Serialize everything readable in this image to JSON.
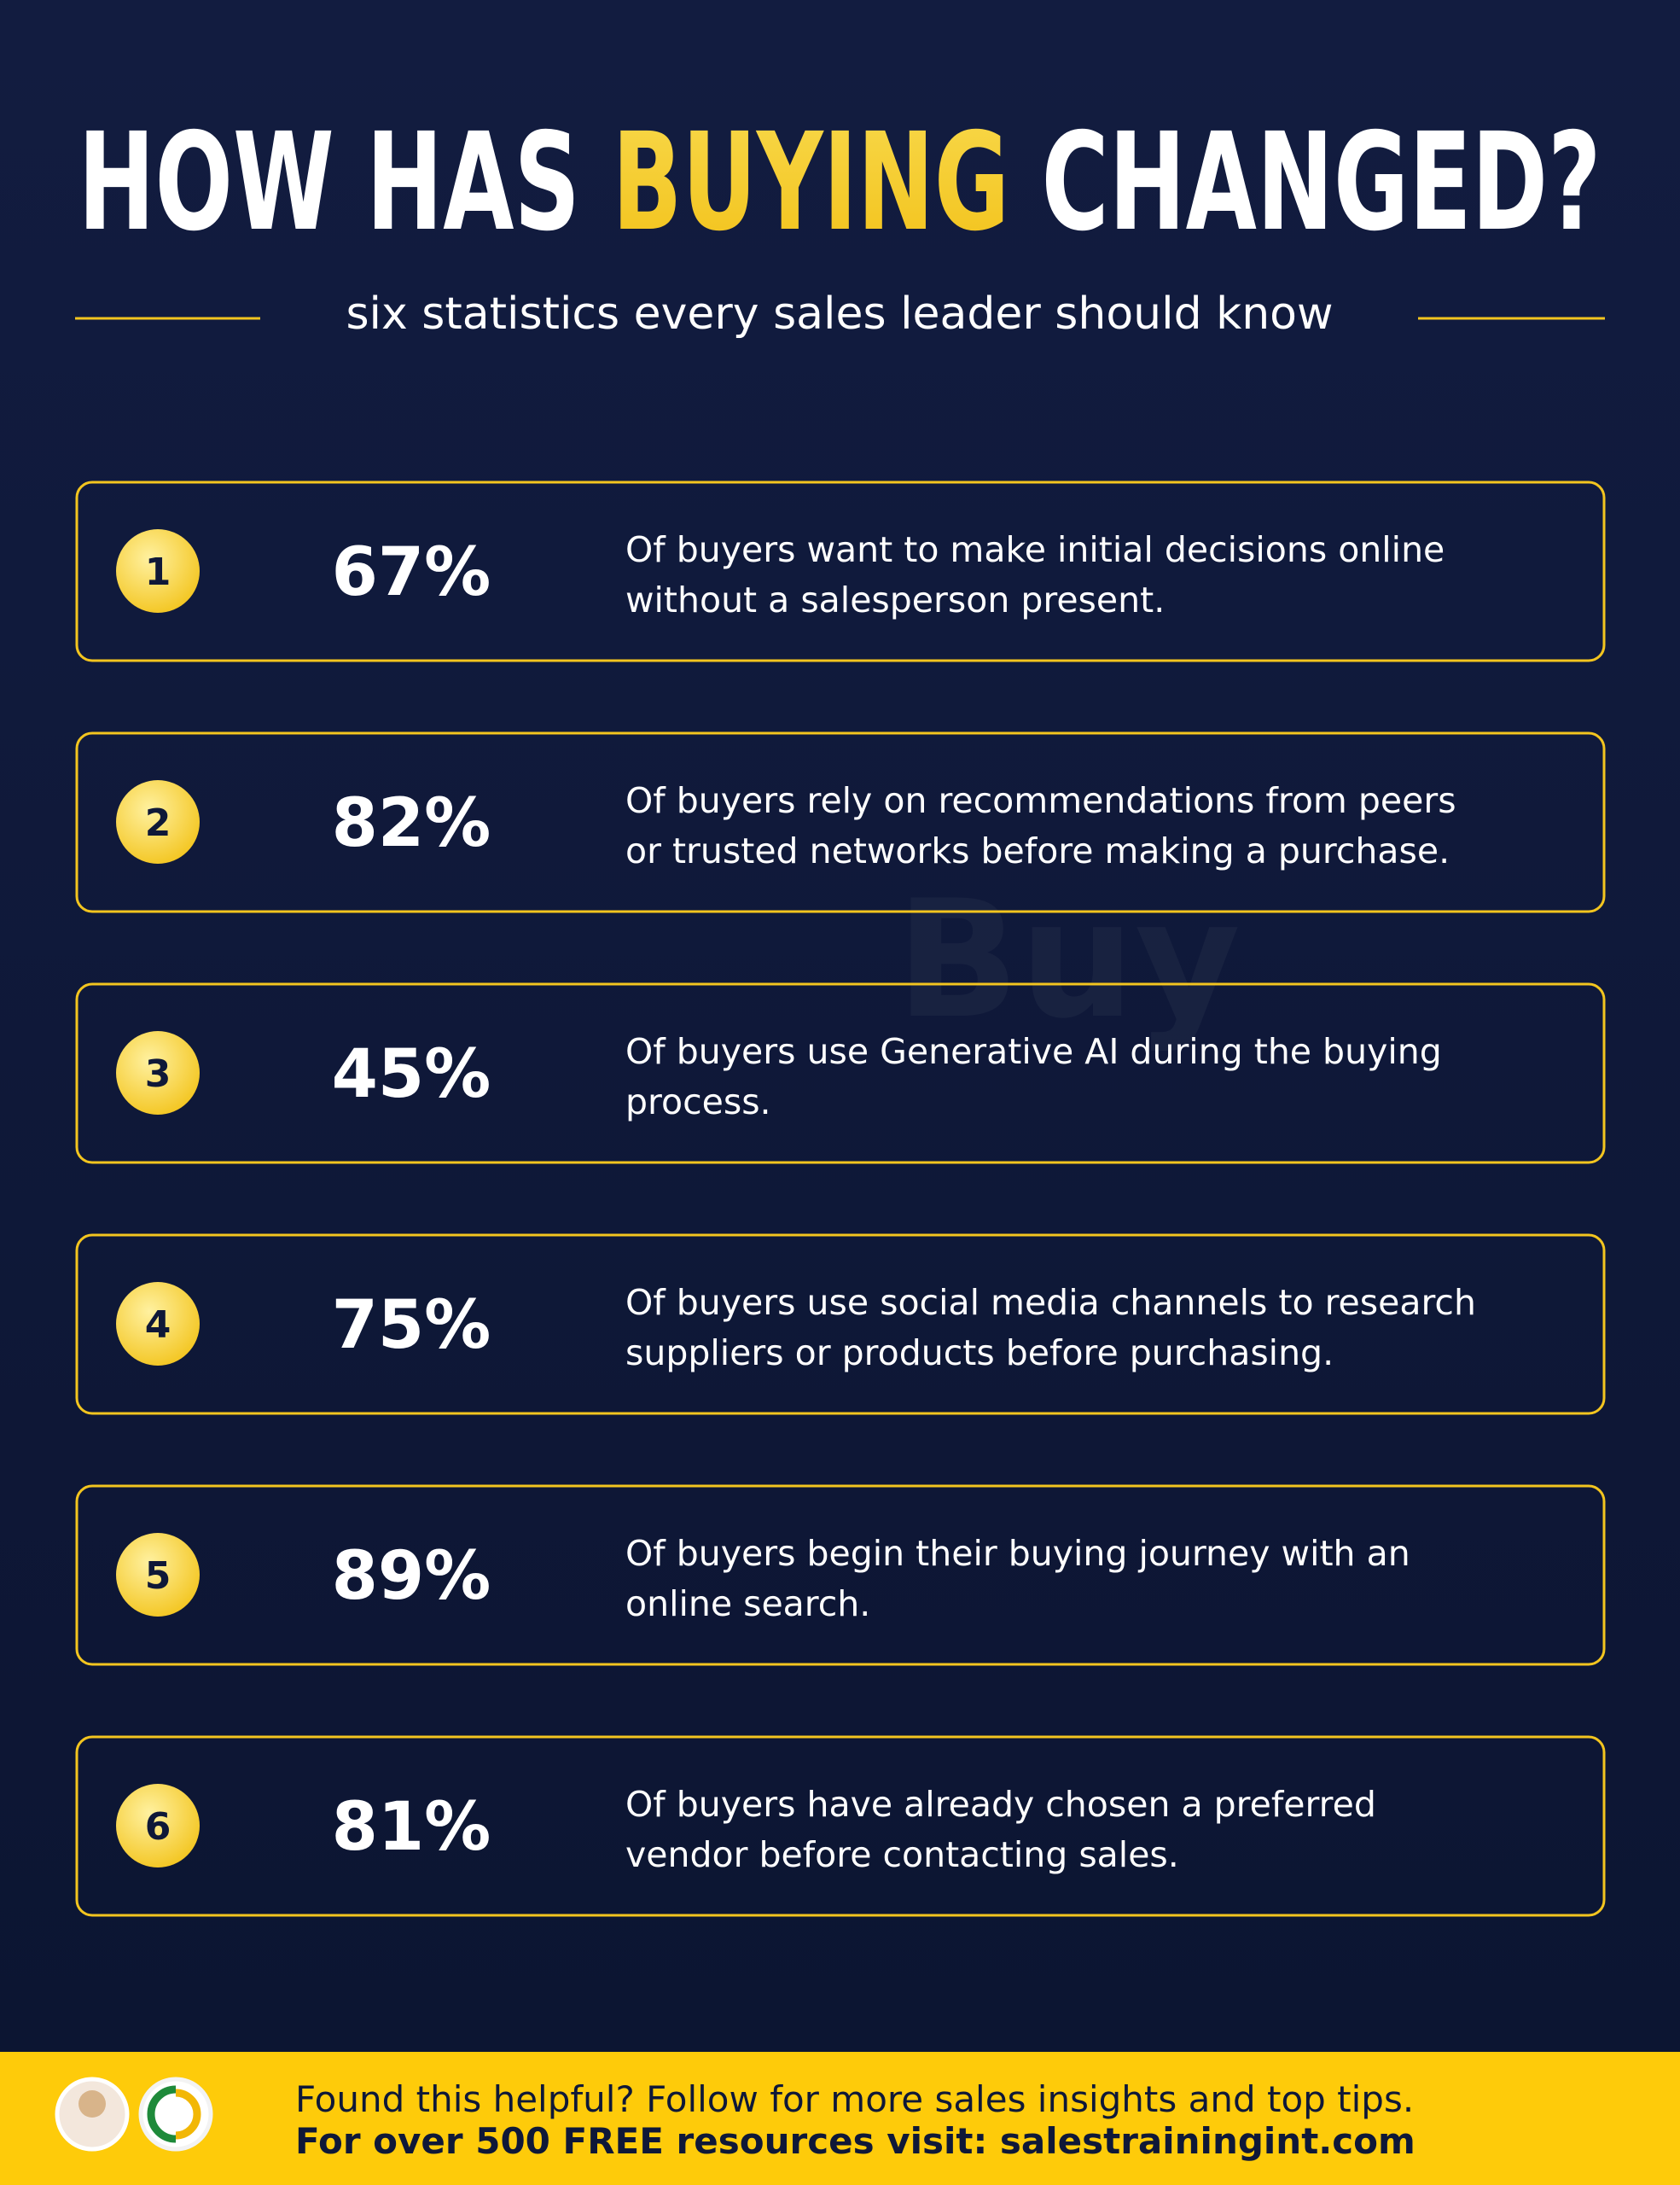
{
  "header": {
    "title": [
      "HOW HAS",
      "BUYING",
      "CHANGED?"
    ],
    "subtitle": "six statistics every sales leader should know"
  },
  "stats": [
    {
      "number": "1",
      "value": "67%",
      "text": [
        "Of buyers want to make initial decisions online",
        "without a salesperson present."
      ]
    },
    {
      "number": "2",
      "value": "82%",
      "text": [
        "Of buyers rely on recommendations from peers",
        "or trusted networks before making a purchase."
      ]
    },
    {
      "number": "3",
      "value": "45%",
      "text": [
        "Of buyers use Generative AI during the buying",
        "process."
      ]
    },
    {
      "number": "4",
      "value": "75%",
      "text": [
        "Of buyers use social media channels to research",
        "suppliers or products before purchasing."
      ]
    },
    {
      "number": "5",
      "value": "89%",
      "text": [
        "Of buyers begin their buying journey with an",
        "online search."
      ]
    },
    {
      "number": "6",
      "value": "81%",
      "text": [
        "Of buyers have already chosen a preferred",
        "vendor before contacting sales."
      ]
    }
  ],
  "footer": {
    "line1": "Found this helpful? Follow for more sales insights and top tips.",
    "line2": "For over 500 FREE resources visit: salestrainingint.com"
  }
}
